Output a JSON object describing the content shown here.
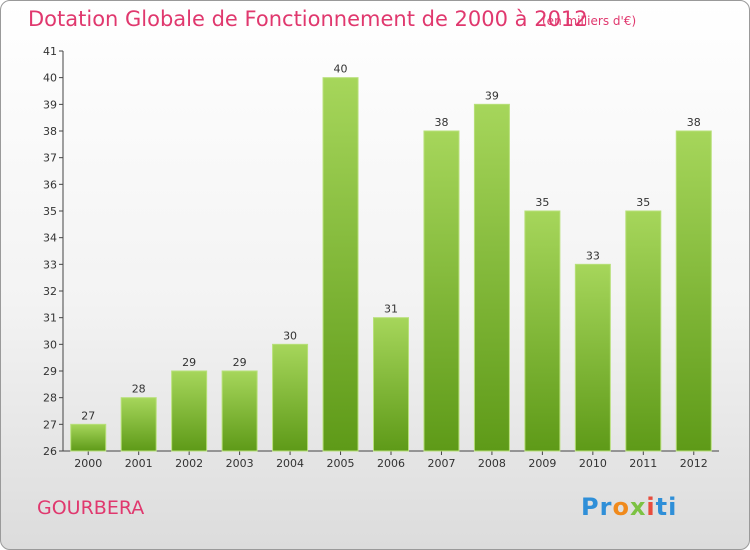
{
  "title": "Dotation Globale de Fonctionnement de 2000 à 2012",
  "unit_note": "(en milliers d'€)",
  "commune": "GOURBERA",
  "logo": {
    "text": "Proxiti",
    "colors": [
      "#2f8fd8",
      "#f08a1c",
      "#7cc243",
      "#e84c3d"
    ]
  },
  "colors": {
    "title": "#e0386e",
    "bar_light": "#a6d65b",
    "bar_dark": "#5e9a18"
  },
  "chart_data": {
    "type": "bar",
    "categories": [
      "2000",
      "2001",
      "2002",
      "2003",
      "2004",
      "2005",
      "2006",
      "2007",
      "2008",
      "2009",
      "2010",
      "2011",
      "2012"
    ],
    "values": [
      27,
      28,
      29,
      29,
      30,
      40,
      31,
      38,
      39,
      35,
      33,
      35,
      38
    ],
    "value_labels": [
      "27",
      "28",
      "29",
      "29",
      "30",
      "40",
      "31",
      "38",
      "39",
      "35",
      "33",
      "35",
      "38"
    ],
    "yticks": [
      "26",
      "27",
      "28",
      "29",
      "30",
      "31",
      "32",
      "33",
      "34",
      "35",
      "36",
      "37",
      "38",
      "39",
      "40",
      "41"
    ],
    "ylim": [
      26,
      41
    ],
    "grid": false,
    "legend": "none"
  }
}
